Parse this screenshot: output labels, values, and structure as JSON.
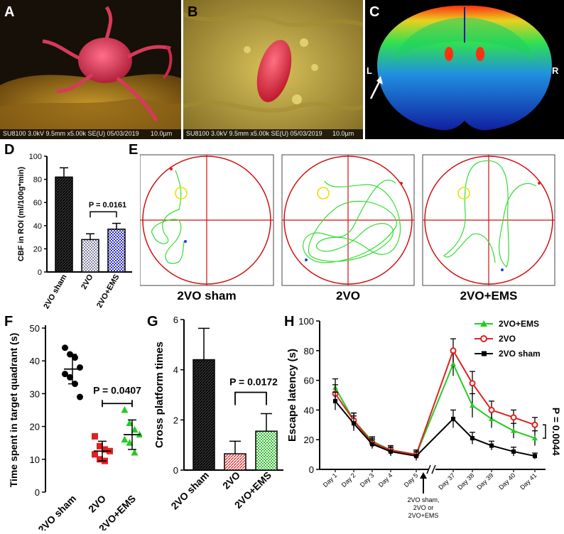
{
  "panels": {
    "A": {
      "letter": "A",
      "caption": "SU8100 3.0kV 9.5mm x5.00k SE(U) 05/03/2019",
      "scale": "10.0µm"
    },
    "B": {
      "letter": "B",
      "caption": "SU8100 3.0kV 9.5mm x5.00k SE(U) 05/03/2019",
      "scale": "10.0µm"
    },
    "C": {
      "letter": "C",
      "left_label": "L",
      "right_label": "R"
    },
    "D": {
      "letter": "D"
    },
    "E": {
      "letter": "E"
    },
    "F": {
      "letter": "F"
    },
    "G": {
      "letter": "G"
    },
    "H": {
      "letter": "H"
    }
  },
  "colors": {
    "sham": "#000000",
    "vo": "#e02020",
    "ems": "#22cc22",
    "pool_line": "#d01010",
    "path": "#33dd33",
    "platform": "#e8e000"
  },
  "chart_data": [
    {
      "id": "D",
      "type": "bar",
      "ylabel": "CBF in ROI (ml/100g*min)",
      "ylim": [
        0,
        100
      ],
      "yticks": [
        0,
        20,
        40,
        60,
        80,
        100
      ],
      "categories": [
        "2VO sham",
        "2VO",
        "2VO+EMS"
      ],
      "values": [
        82,
        28,
        37
      ],
      "errors": [
        8,
        5,
        5
      ],
      "annotation": "P = 0.0161"
    },
    {
      "id": "E",
      "type": "other",
      "titles": [
        "2VO sham",
        "2VO",
        "2VO+EMS"
      ]
    },
    {
      "id": "F",
      "type": "scatter",
      "ylabel": "Time spent in target quadrant (s)",
      "ylim": [
        0,
        50
      ],
      "yticks": [
        0,
        10,
        20,
        30,
        40,
        50
      ],
      "categories": [
        "2VO sham",
        "2VO",
        "2VO+EMS"
      ],
      "series": [
        {
          "name": "2VO sham",
          "points": [
            44,
            42,
            41,
            38,
            36,
            35,
            33,
            29
          ],
          "mean": 37.5,
          "sd": 4.5
        },
        {
          "name": "2VO",
          "points": [
            17,
            14,
            13,
            12.5,
            11.5,
            10,
            9.5
          ],
          "mean": 12.5,
          "sd": 3
        },
        {
          "name": "2VO+EMS",
          "points": [
            25,
            21,
            19,
            17.5,
            16,
            15,
            12
          ],
          "mean": 17.5,
          "sd": 4.5
        }
      ],
      "annotation": "P = 0.0407"
    },
    {
      "id": "G",
      "type": "bar",
      "ylabel": "Cross platform times",
      "ylim": [
        0,
        6
      ],
      "yticks": [
        0,
        2,
        4,
        6
      ],
      "categories": [
        "2VO sham",
        "2VO",
        "2VO+EMS"
      ],
      "values": [
        4.4,
        0.65,
        1.55
      ],
      "errors": [
        1.25,
        0.5,
        0.7
      ],
      "annotation": "P = 0.0172"
    },
    {
      "id": "H",
      "type": "line",
      "ylabel": "Escape latency (s)",
      "ylim": [
        0,
        100
      ],
      "yticks": [
        0,
        20,
        40,
        60,
        80,
        100
      ],
      "x": [
        "Day 1",
        "Day 2",
        "Day 3",
        "Day 4",
        "Day 5",
        "Day 37",
        "Day 38",
        "Day 39",
        "Day 40",
        "Day 41"
      ],
      "series": [
        {
          "name": "2VO+EMS",
          "values": [
            55,
            33,
            19,
            13,
            10,
            71,
            43,
            34,
            26,
            21
          ],
          "errors": [
            6,
            5,
            3,
            3,
            3,
            8,
            8,
            6,
            5,
            5
          ]
        },
        {
          "name": "2VO",
          "values": [
            51,
            33,
            18,
            13,
            10,
            80,
            58,
            40,
            35,
            30
          ],
          "errors": [
            6,
            5,
            3,
            3,
            3,
            8,
            8,
            6,
            5,
            5
          ]
        },
        {
          "name": "2VO sham",
          "values": [
            46,
            31,
            17,
            12,
            9,
            34,
            21,
            16,
            12,
            9
          ],
          "errors": [
            6,
            5,
            3,
            3,
            3,
            6,
            4,
            3,
            3,
            2
          ]
        }
      ],
      "annotation_arrow": "2VO sham,\n2VO or\n2VO+EMS",
      "annotation_arrow_lines": [
        "2VO sham,",
        "2VO or",
        "2VO+EMS"
      ],
      "annotation_p": "P = 0.0044"
    }
  ]
}
